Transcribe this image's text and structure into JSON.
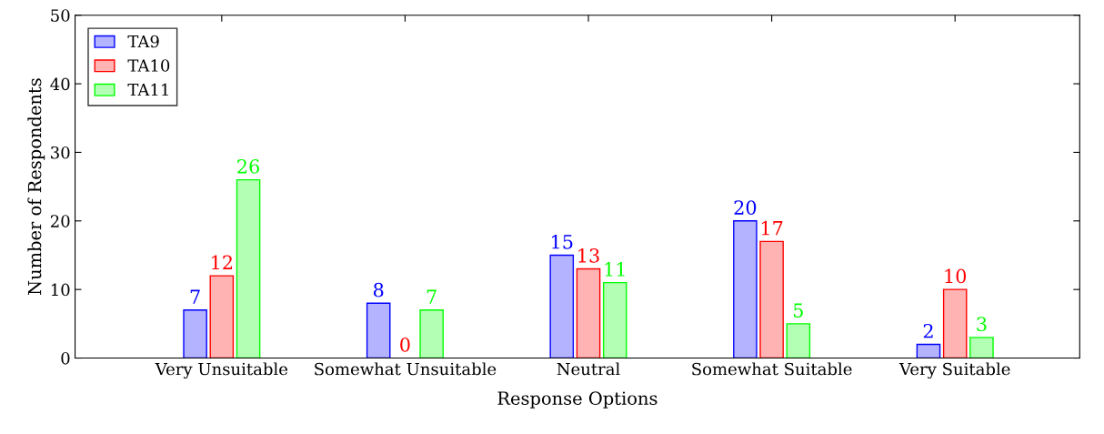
{
  "chart_data": {
    "type": "bar",
    "xlabel": "Response Options",
    "ylabel": "Number of Respondents",
    "categories": [
      "Very Unsuitable",
      "Somewhat Unsuitable",
      "Neutral",
      "Somewhat Suitable",
      "Very Suitable"
    ],
    "series": [
      {
        "name": "TA9",
        "color": "#b3b3ff",
        "values": [
          7,
          8,
          15,
          20,
          2
        ]
      },
      {
        "name": "TA10",
        "color": "#ffb3b3",
        "values": [
          12,
          0,
          13,
          17,
          10
        ]
      },
      {
        "name": "TA11",
        "color": "#b3ffb3",
        "values": [
          26,
          7,
          11,
          5,
          3
        ]
      }
    ],
    "ylim": [
      0,
      50
    ],
    "yticks": [
      0,
      10,
      20,
      30,
      40,
      50
    ],
    "grid": false,
    "legend": "top left",
    "data_labels": true
  }
}
